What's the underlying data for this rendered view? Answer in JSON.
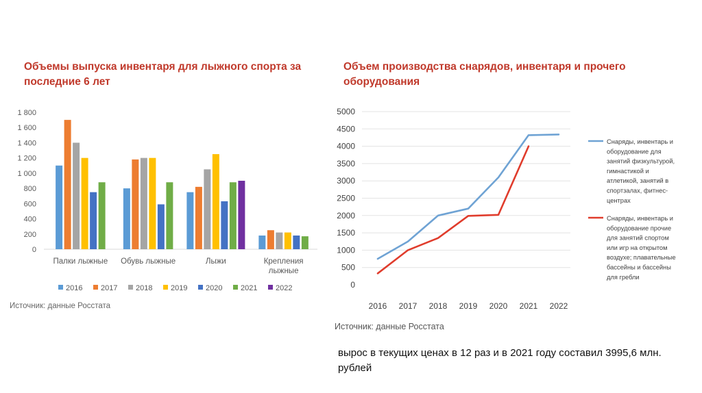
{
  "left_title": "Объемы выпуска инвентаря для лыжного спорта за последние 6 лет",
  "right_title": "Объем производства снарядов, инвентаря и прочего оборудования",
  "left_source": "Источник: данные Росстата",
  "right_source": "Источник: данные Росстата",
  "note": "вырос в текущих ценах в 12 раз и в 2021 году составил 3995,6 млн. рублей",
  "chart_data": [
    {
      "type": "bar",
      "title": "Объемы выпуска инвентаря для лыжного спорта за последние 6 лет",
      "categories": [
        [
          "Палки лыжные"
        ],
        [
          "Обувь лыжные"
        ],
        [
          "Лыжи"
        ],
        [
          "Крепления",
          "лыжные"
        ]
      ],
      "ylim": [
        0,
        1800
      ],
      "yticks": [
        0,
        200,
        400,
        600,
        800,
        1000,
        1200,
        1400,
        1600,
        1800
      ],
      "ytick_labels": [
        "0",
        "200",
        "400",
        "600",
        "800",
        "1 000",
        "1 200",
        "1 400",
        "1 600",
        "1 800"
      ],
      "series": [
        {
          "name": "2016",
          "color": "#5b9bd5",
          "values": [
            1100,
            800,
            750,
            180
          ]
        },
        {
          "name": "2017",
          "color": "#ed7d31",
          "values": [
            1700,
            1180,
            820,
            250
          ]
        },
        {
          "name": "2018",
          "color": "#a5a5a5",
          "values": [
            1400,
            1200,
            1050,
            220
          ]
        },
        {
          "name": "2019",
          "color": "#ffc000",
          "values": [
            1200,
            1200,
            1250,
            220
          ]
        },
        {
          "name": "2020",
          "color": "#4472c4",
          "values": [
            750,
            590,
            630,
            180
          ]
        },
        {
          "name": "2021",
          "color": "#70ad47",
          "values": [
            880,
            880,
            880,
            170
          ]
        },
        {
          "name": "2022",
          "color": "#7030a0",
          "values": [
            null,
            null,
            900,
            null
          ]
        }
      ]
    },
    {
      "type": "line",
      "title": "Объем производства снарядов, инвентаря и прочего оборудования",
      "x": [
        "2016",
        "2017",
        "2018",
        "2019",
        "2020",
        "2021",
        "2022"
      ],
      "ylim": [
        0,
        5000
      ],
      "yticks": [
        0,
        500,
        1000,
        1500,
        2000,
        2500,
        3000,
        3500,
        4000,
        4500,
        5000
      ],
      "series": [
        {
          "name": "Снаряды, инвентарь и оборудование для занятий физкультурой, гимнастикой и атлетикой, занятий в спортзалах, фитнес-центрах",
          "legend_lines": [
            "Снаряды, инвентарь и",
            "оборудование для",
            "занятий физкультурой,",
            "гимнастикой и",
            "атлетикой, занятий в",
            "спортзалах, фитнес-",
            "центрах"
          ],
          "color": "#6fa3d4",
          "values": [
            750,
            1250,
            2000,
            2200,
            3100,
            4320,
            4340
          ]
        },
        {
          "name": "Снаряды, инвентарь и оборудование прочие для занятий спортом или игр на открытом воздухе; плавательные бассейны и бассейны для гребли",
          "legend_lines": [
            "Снаряды, инвентарь и",
            "оборудование прочие",
            "для занятий спортом",
            "или игр на открытом",
            "воздухе; плавательные",
            "бассейны и бассейны",
            "для гребли"
          ],
          "color": "#e03c2c",
          "values": [
            330,
            1000,
            1350,
            1990,
            2020,
            4000,
            null
          ]
        }
      ]
    }
  ]
}
